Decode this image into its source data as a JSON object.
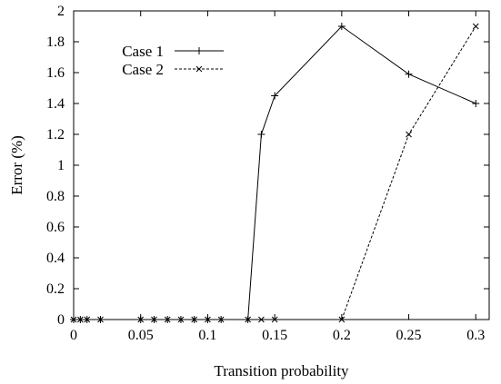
{
  "chart_data": {
    "type": "line",
    "xlabel": "Transition probability",
    "ylabel": "Error (%)",
    "xlim": [
      0,
      0.31
    ],
    "ylim": [
      0,
      2
    ],
    "xticks": [
      0,
      0.05,
      0.1,
      0.15,
      0.2,
      0.25,
      0.3
    ],
    "xtick_labels": [
      "0",
      "0.05",
      "0.1",
      "0.15",
      "0.2",
      "0.25",
      "0.3"
    ],
    "yticks": [
      0,
      0.2,
      0.4,
      0.6,
      0.8,
      1,
      1.2,
      1.4,
      1.6,
      1.8,
      2
    ],
    "ytick_labels": [
      "0",
      "0.2",
      "0.4",
      "0.6",
      "0.8",
      "1",
      "1.2",
      "1.4",
      "1.6",
      "1.8",
      "2"
    ],
    "grid": false,
    "legend_position": "top-left",
    "series": [
      {
        "name": "Case 1",
        "style": "solid",
        "marker": "plus",
        "x": [
          0,
          0.005,
          0.01,
          0.02,
          0.05,
          0.06,
          0.07,
          0.08,
          0.09,
          0.1,
          0.11,
          0.13,
          0.14,
          0.15,
          0.2,
          0.25,
          0.3
        ],
        "y": [
          0,
          0,
          0,
          0,
          0,
          0,
          0,
          0,
          0,
          0,
          0,
          0,
          1.2,
          1.45,
          1.9,
          1.59,
          1.4
        ]
      },
      {
        "name": "Case 2",
        "style": "dashed",
        "marker": "cross",
        "x": [
          0,
          0.005,
          0.01,
          0.02,
          0.05,
          0.06,
          0.07,
          0.08,
          0.09,
          0.1,
          0.11,
          0.13,
          0.14,
          0.15,
          0.2,
          0.25,
          0.3
        ],
        "y": [
          0,
          0,
          0,
          0,
          0,
          0,
          0,
          0,
          0,
          0,
          0,
          0,
          0,
          0,
          0,
          1.2,
          1.9
        ]
      }
    ]
  }
}
